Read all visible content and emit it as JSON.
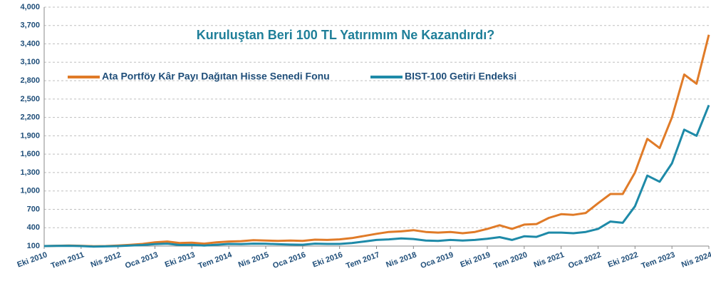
{
  "chart_data": {
    "type": "line",
    "title": "Kuruluştan Beri 100 TL Yatırımım Ne Kazandırdı?",
    "categories": [
      "Eki 2010",
      null,
      null,
      "Tem 2011",
      null,
      null,
      "Nis 2012",
      null,
      null,
      "Oca 2013",
      null,
      null,
      "Eki 2013",
      null,
      null,
      "Tem 2014",
      null,
      null,
      "Nis 2015",
      null,
      null,
      "Oca 2016",
      null,
      null,
      "Eki 2016",
      null,
      null,
      "Tem 2017",
      null,
      null,
      "Nis 2018",
      null,
      null,
      "Oca 2019",
      null,
      null,
      "Eki 2019",
      null,
      null,
      "Tem 2020",
      null,
      null,
      "Nis 2021",
      null,
      null,
      "Oca 2022",
      null,
      null,
      "Eki 2022",
      null,
      null,
      "Tem 2023",
      null,
      null,
      "Nis 2024"
    ],
    "series": [
      {
        "name": "Ata Portföy Kâr Payı Dağıtan Hisse Senedi Fonu",
        "color": "#e07b28",
        "values": [
          100,
          105,
          108,
          105,
          98,
          100,
          108,
          120,
          135,
          160,
          175,
          150,
          155,
          140,
          160,
          175,
          180,
          195,
          190,
          185,
          190,
          185,
          205,
          200,
          210,
          230,
          265,
          300,
          330,
          340,
          360,
          330,
          320,
          330,
          310,
          330,
          380,
          440,
          380,
          450,
          460,
          560,
          620,
          610,
          640,
          800,
          950,
          950,
          1300,
          1850,
          1700,
          2200,
          2900,
          2750,
          3550
        ]
      },
      {
        "name": "BIST-100 Getiri Endeksi",
        "color": "#1e8aa8",
        "values": [
          100,
          103,
          105,
          100,
          92,
          95,
          100,
          108,
          118,
          132,
          140,
          118,
          120,
          108,
          122,
          135,
          132,
          140,
          138,
          130,
          125,
          122,
          140,
          135,
          135,
          150,
          175,
          200,
          210,
          225,
          215,
          190,
          185,
          200,
          190,
          200,
          220,
          245,
          200,
          260,
          250,
          320,
          320,
          310,
          330,
          380,
          500,
          480,
          750,
          1250,
          1150,
          1450,
          2000,
          1900,
          2400
        ]
      }
    ],
    "ylim": [
      100,
      4000
    ],
    "yticks": [
      100,
      400,
      700,
      {
        "value": 1000,
        "label": "1,000"
      },
      {
        "value": 1300,
        "label": "1,300"
      },
      {
        "value": 1600,
        "label": "1,600"
      },
      {
        "value": 1900,
        "label": "1,900"
      },
      {
        "value": 2200,
        "label": "2,200"
      },
      {
        "value": 2500,
        "label": "2,500"
      },
      {
        "value": 2800,
        "label": "2,800"
      },
      {
        "value": 3100,
        "label": "3,100"
      },
      {
        "value": 3400,
        "label": "3,400"
      },
      {
        "value": 3700,
        "label": "3,700"
      },
      {
        "value": 4000,
        "label": "4,000"
      }
    ],
    "grid": true
  }
}
